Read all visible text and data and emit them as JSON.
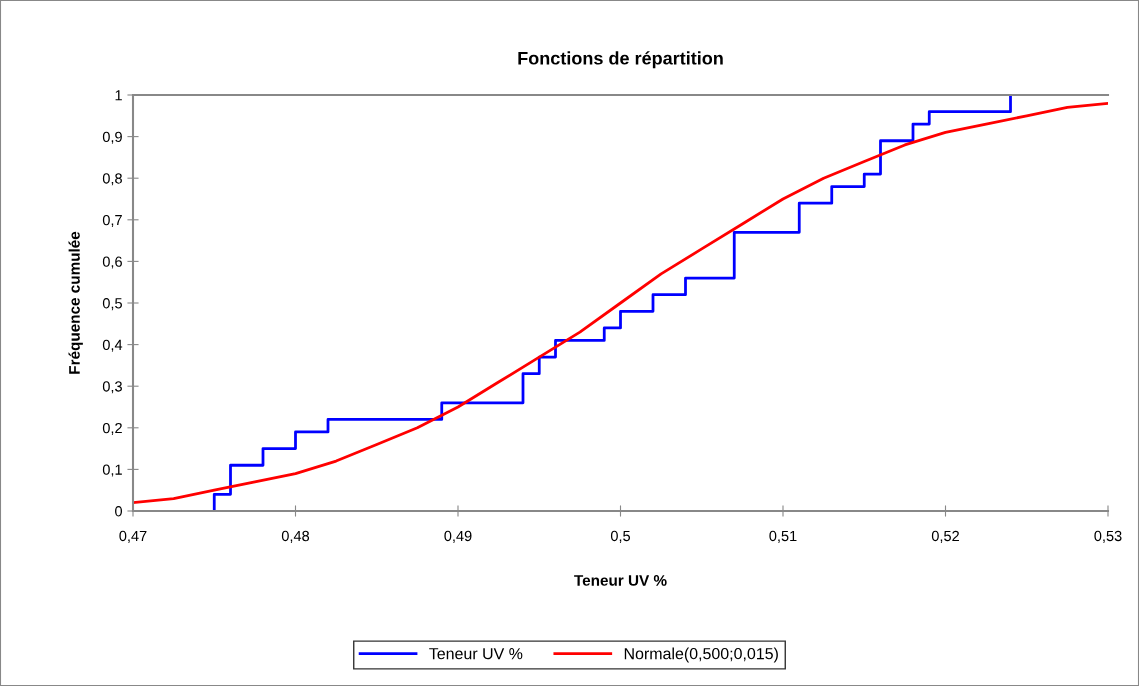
{
  "chart_data": {
    "type": "line",
    "title": "Fonctions de répartition",
    "xlabel": "Teneur UV %",
    "ylabel": "Fréquence cumulée",
    "xlim": [
      0.47,
      0.53
    ],
    "xticks": [
      {
        "value": 0.47,
        "label": "0,47"
      },
      {
        "value": 0.48,
        "label": "0,48"
      },
      {
        "value": 0.49,
        "label": "0,49"
      },
      {
        "value": 0.5,
        "label": "0,5"
      },
      {
        "value": 0.51,
        "label": "0,51"
      },
      {
        "value": 0.52,
        "label": "0,52"
      },
      {
        "value": 0.53,
        "label": "0,53"
      }
    ],
    "ylim": [
      0,
      1
    ],
    "yticks": [
      0,
      {
        "value": 0.1,
        "label": "0,1"
      },
      {
        "value": 0.2,
        "label": "0,2"
      },
      {
        "value": 0.3,
        "label": "0,3"
      },
      {
        "value": 0.4,
        "label": "0,4"
      },
      {
        "value": 0.5,
        "label": "0,5"
      },
      {
        "value": 0.6,
        "label": "0,6"
      },
      {
        "value": 0.7,
        "label": "0,7"
      },
      {
        "value": 0.8,
        "label": "0,8"
      },
      {
        "value": 0.9,
        "label": "0,9"
      },
      1
    ],
    "grid": false,
    "legend": "bottom",
    "marker": "none",
    "line_style": "solid",
    "series": [
      {
        "name": "Teneur UV %",
        "type": "step",
        "color": "#0000ff",
        "x": [
          0.475,
          0.475,
          0.476,
          0.478,
          0.48,
          0.482,
          0.489,
          0.494,
          0.495,
          0.496,
          0.499,
          0.5,
          0.502,
          0.504,
          0.507,
          0.511,
          0.513,
          0.515,
          0.516,
          0.518,
          0.519,
          0.524
        ],
        "values": [
          0,
          0.04,
          0.11,
          0.15,
          0.19,
          0.22,
          0.26,
          0.33,
          0.37,
          0.41,
          0.44,
          0.48,
          0.52,
          0.56,
          0.67,
          0.74,
          0.78,
          0.81,
          0.89,
          0.93,
          0.96,
          1
        ]
      },
      {
        "name": "Normale(0,500;0,015)",
        "color": "#ff0000",
        "x": [
          0.47,
          0.4725,
          0.475,
          0.4775,
          0.48,
          0.4825,
          0.485,
          0.4875,
          0.49,
          0.4925,
          0.495,
          0.4975,
          0.5,
          0.5025,
          0.505,
          0.5075,
          0.51,
          0.5125,
          0.515,
          0.5175,
          0.52,
          0.5225,
          0.525,
          0.5275,
          0.53
        ],
        "values": [
          0.02,
          0.03,
          0.05,
          0.07,
          0.09,
          0.12,
          0.16,
          0.2,
          0.25,
          0.31,
          0.37,
          0.43,
          0.5,
          0.57,
          0.63,
          0.69,
          0.75,
          0.8,
          0.84,
          0.88,
          0.91,
          0.93,
          0.95,
          0.97,
          0.98
        ]
      }
    ]
  }
}
